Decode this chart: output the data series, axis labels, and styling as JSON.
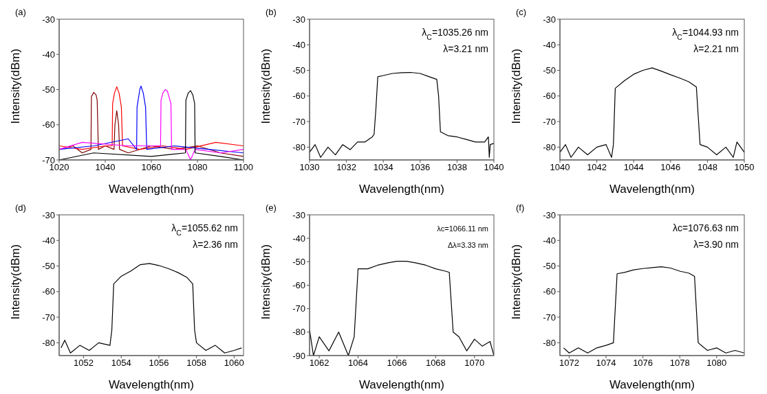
{
  "chart_data": [
    {
      "type": "line",
      "title": "(a)",
      "xlabel": "Wavelength(nm)",
      "ylabel": "Intensity(dBm)",
      "xlim": [
        1020,
        1100
      ],
      "xticks": [
        1020,
        1040,
        1060,
        1080,
        1100
      ],
      "ylim": [
        -70,
        -30
      ],
      "yticks": [
        -70,
        -60,
        -50,
        -40,
        -30
      ],
      "marker": "none",
      "line_style": "solid",
      "series": [
        {
          "color": "#800000",
          "x": [
            1020,
            1026,
            1030,
            1033.8,
            1034,
            1035,
            1036,
            1036.5,
            1037,
            1040,
            1043.8,
            1044.2,
            1045,
            1045.8,
            1046.2,
            1050,
            1060,
            1070,
            1080,
            1090,
            1100
          ],
          "values": [
            -67,
            -66,
            -68,
            -67,
            -52,
            -50.8,
            -51.5,
            -53,
            -67,
            -66,
            -67,
            -60,
            -56,
            -60,
            -67,
            -68,
            -66,
            -67,
            -66,
            -68,
            -69
          ]
        },
        {
          "color": "#ff0000",
          "x": [
            1020,
            1030,
            1040,
            1043,
            1043.2,
            1044,
            1045,
            1046,
            1047,
            1047.5,
            1055,
            1065,
            1075,
            1088,
            1100
          ],
          "values": [
            -66,
            -67,
            -66,
            -66,
            -54,
            -51,
            -49.2,
            -51,
            -55,
            -66,
            -67,
            -66,
            -67,
            -65,
            -66
          ]
        },
        {
          "color": "#0000ff",
          "x": [
            1020,
            1035,
            1050,
            1053.6,
            1053.8,
            1055,
            1055.5,
            1056.5,
            1057.5,
            1058,
            1070,
            1085,
            1100
          ],
          "values": [
            -67,
            -66,
            -64,
            -67,
            -55,
            -50,
            -49,
            -51,
            -55,
            -67,
            -66,
            -67,
            -68
          ]
        },
        {
          "color": "#ff00ff",
          "x": [
            1020,
            1030,
            1050,
            1064,
            1064.2,
            1065,
            1066,
            1067,
            1068.5,
            1068.8,
            1075,
            1077,
            1079,
            1090,
            1100
          ],
          "values": [
            -67,
            -65,
            -66,
            -66,
            -53,
            -51,
            -50,
            -50.5,
            -54,
            -67,
            -67,
            -70,
            -67,
            -68,
            -67
          ]
        },
        {
          "color": "#000000",
          "x": [
            1020,
            1035,
            1060,
            1074.8,
            1075,
            1076,
            1077,
            1078,
            1078.8,
            1079,
            1090,
            1100
          ],
          "values": [
            -70,
            -68,
            -69,
            -68,
            -53,
            -51,
            -50.3,
            -51.5,
            -54,
            -68,
            -69,
            -70
          ]
        }
      ]
    },
    {
      "type": "line",
      "title": "(b)",
      "xlabel": "Wavelength(nm)",
      "ylabel": "Intensity(dBm)",
      "annotations": [
        "λ$_{C}$=1035.26  nm",
        "λ=3.21 nm"
      ],
      "xlim": [
        1030,
        1040
      ],
      "xticks": [
        1030,
        1032,
        1034,
        1036,
        1038,
        1040
      ],
      "ylim": [
        -85,
        -30
      ],
      "yticks": [
        -80,
        -70,
        -60,
        -50,
        -40,
        -30
      ],
      "marker": "none",
      "line_style": "solid",
      "series": [
        {
          "color": "#000000",
          "x": [
            1030,
            1030.3,
            1030.6,
            1031,
            1031.4,
            1031.8,
            1032.2,
            1032.6,
            1033,
            1033.4,
            1033.5,
            1033.6,
            1033.7,
            1034,
            1034.5,
            1035,
            1035.5,
            1036,
            1036.5,
            1036.9,
            1037,
            1037.1,
            1037.5,
            1038,
            1038.5,
            1039,
            1039.5,
            1039.7,
            1039.75,
            1039.8,
            1040
          ],
          "values": [
            -82,
            -79,
            -84,
            -80,
            -83,
            -79,
            -81,
            -78,
            -78,
            -76,
            -75,
            -65,
            -52.5,
            -52,
            -51.2,
            -50.9,
            -50.8,
            -51.2,
            -52.5,
            -53.5,
            -60,
            -74,
            -75.5,
            -76,
            -77,
            -78,
            -78,
            -76,
            -84,
            -79,
            -78.5
          ]
        }
      ]
    },
    {
      "type": "line",
      "title": "(c)",
      "xlabel": "Wavelength(nm)",
      "ylabel": "Intensity(dBm)",
      "annotations": [
        "λ$_{C}$=1044.93 nm",
        "λ=2.21 nm"
      ],
      "xlim": [
        1040,
        1050
      ],
      "xticks": [
        1040,
        1042,
        1044,
        1046,
        1048,
        1050
      ],
      "ylim": [
        -85,
        -30
      ],
      "yticks": [
        -80,
        -70,
        -60,
        -50,
        -40,
        -30
      ],
      "marker": "none",
      "line_style": "solid",
      "series": [
        {
          "color": "#000000",
          "x": [
            1040,
            1040.3,
            1040.6,
            1041,
            1041.5,
            1042,
            1042.5,
            1042.8,
            1042.9,
            1043,
            1043.5,
            1044,
            1044.5,
            1045,
            1045.5,
            1046,
            1046.5,
            1047,
            1047.4,
            1047.6,
            1048,
            1048.5,
            1049,
            1049.4,
            1049.6,
            1050
          ],
          "values": [
            -82,
            -79,
            -84,
            -80,
            -83,
            -80,
            -79,
            -84,
            -79,
            -57,
            -54,
            -51.5,
            -50,
            -49,
            -50.3,
            -51.7,
            -53,
            -54.5,
            -56.5,
            -79,
            -80,
            -83,
            -80,
            -84,
            -78,
            -82
          ]
        }
      ]
    },
    {
      "type": "line",
      "title": "(d)",
      "xlabel": "Wavelength(nm)",
      "ylabel": "Intensity(dBm)",
      "annotations": [
        "λ$_{C}$=1055.62 nm",
        "λ=2.36 nm"
      ],
      "xlim": [
        1050.7,
        1060.5
      ],
      "xticks": [
        1052,
        1054,
        1056,
        1058,
        1060
      ],
      "ylim": [
        -85,
        -30
      ],
      "yticks": [
        -80,
        -70,
        -60,
        -50,
        -40,
        -30
      ],
      "marker": "none",
      "line_style": "solid",
      "series": [
        {
          "color": "#000000",
          "x": [
            1050.8,
            1051,
            1051.3,
            1051.8,
            1052.3,
            1052.8,
            1053.4,
            1053.5,
            1053.6,
            1054,
            1054.5,
            1055,
            1055.5,
            1056,
            1056.5,
            1057,
            1057.5,
            1057.8,
            1057.9,
            1058,
            1058.5,
            1059,
            1059.5,
            1060,
            1060.4
          ],
          "values": [
            -82,
            -79,
            -84,
            -81,
            -83,
            -80,
            -81,
            -75,
            -57,
            -54,
            -52,
            -49.5,
            -49,
            -49.8,
            -51,
            -52.5,
            -54.5,
            -57,
            -75,
            -80,
            -83,
            -81,
            -84,
            -83,
            -82
          ]
        }
      ]
    },
    {
      "type": "line",
      "title": "(e)",
      "xlabel": "Wavelength(nm)",
      "ylabel": "Intensity(dBm)",
      "annotations": [
        "λc=1066.11 nm",
        "Δλ=3.33 nm"
      ],
      "xlim": [
        1061.5,
        1071
      ],
      "xticks": [
        1062,
        1064,
        1066,
        1068,
        1070
      ],
      "ylim": [
        -90,
        -30
      ],
      "yticks": [
        -90,
        -80,
        -70,
        -60,
        -50,
        -40,
        -30
      ],
      "marker": "none",
      "line_style": "solid",
      "series": [
        {
          "color": "#000000",
          "x": [
            1061.5,
            1061.7,
            1062,
            1062.5,
            1063,
            1063.5,
            1063.8,
            1064,
            1064.5,
            1065,
            1065.5,
            1066,
            1066.5,
            1067,
            1067.5,
            1068,
            1068.5,
            1068.7,
            1068.9,
            1069.2,
            1069.6,
            1070,
            1070.4,
            1070.8,
            1071
          ],
          "values": [
            -79,
            -90,
            -82,
            -88,
            -80,
            -90,
            -82,
            -53,
            -53,
            -51.5,
            -50.5,
            -49.8,
            -49.8,
            -50.5,
            -51.5,
            -53,
            -54,
            -54.5,
            -80,
            -82,
            -88,
            -83,
            -86,
            -84,
            -90
          ]
        }
      ]
    },
    {
      "type": "line",
      "title": "(f)",
      "xlabel": "Wavelength(nm)",
      "ylabel": "Intensity(dBm)",
      "annotations": [
        "λc=1076.63 nm",
        "λ=3.90 nm"
      ],
      "xlim": [
        1071.5,
        1081.5
      ],
      "xticks": [
        1072,
        1074,
        1076,
        1078,
        1080
      ],
      "ylim": [
        -85,
        -30
      ],
      "yticks": [
        -80,
        -70,
        -60,
        -50,
        -40,
        -30
      ],
      "marker": "none",
      "line_style": "solid",
      "series": [
        {
          "color": "#000000",
          "x": [
            1071.7,
            1072,
            1072.5,
            1073,
            1073.5,
            1074,
            1074.4,
            1074.6,
            1075,
            1075.5,
            1076,
            1076.5,
            1077,
            1077.5,
            1078,
            1078.5,
            1078.8,
            1079,
            1079.5,
            1080,
            1080.5,
            1081,
            1081.5
          ],
          "values": [
            -82,
            -84,
            -82,
            -84,
            -82,
            -81,
            -80,
            -53,
            -52.5,
            -51.5,
            -51,
            -50.6,
            -50.3,
            -50.8,
            -52,
            -52.8,
            -54,
            -80,
            -83,
            -82,
            -84,
            -83,
            -84
          ]
        }
      ]
    }
  ]
}
